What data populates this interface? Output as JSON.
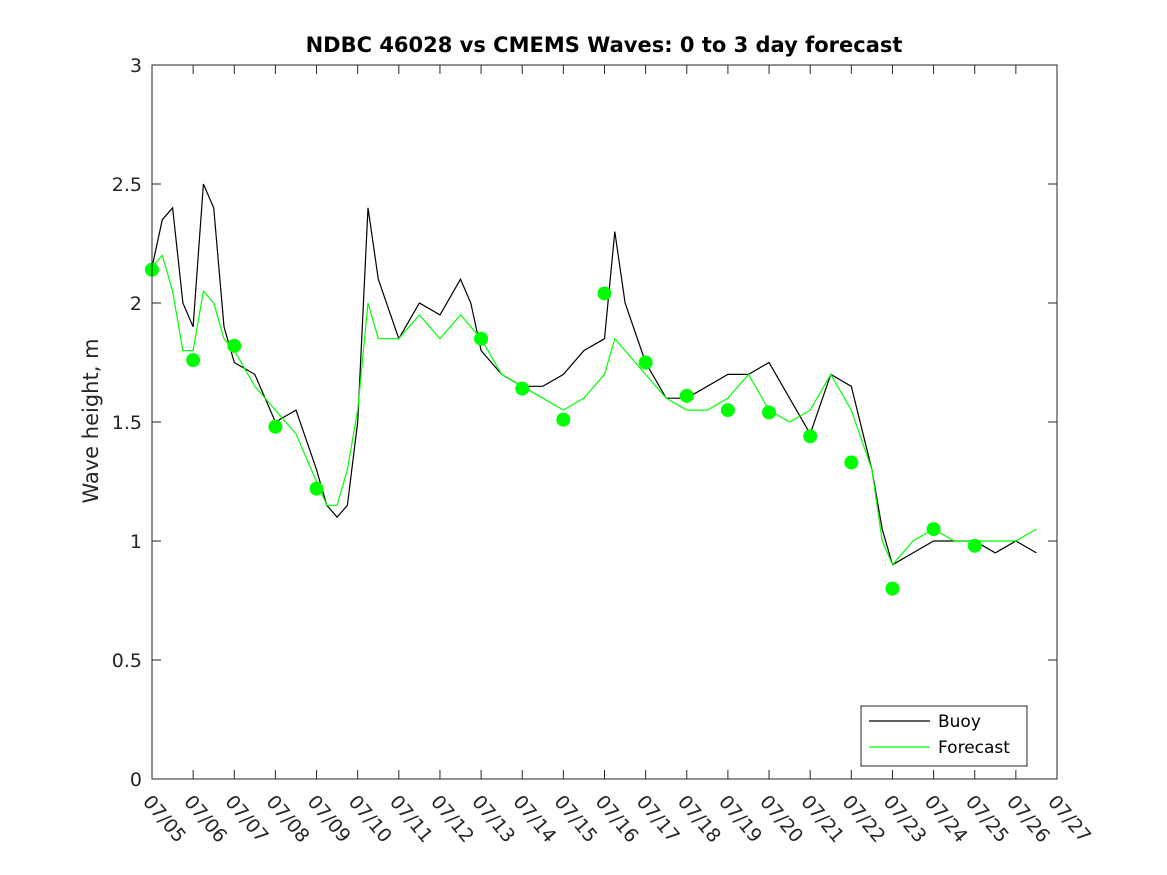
{
  "chart_data": {
    "type": "line",
    "title": "NDBC 46028 vs CMEMS Waves: 0 to 3 day forecast",
    "xlabel": "",
    "ylabel": "Wave height, m",
    "ylim": [
      0,
      3
    ],
    "xlim": [
      "07/05",
      "07/27"
    ],
    "grid": false,
    "legend_position": "bottom-right",
    "x_tick_labels": [
      "07/05",
      "07/06",
      "07/07",
      "07/08",
      "07/09",
      "07/10",
      "07/11",
      "07/12",
      "07/13",
      "07/14",
      "07/15",
      "07/16",
      "07/17",
      "07/18",
      "07/19",
      "07/20",
      "07/21",
      "07/22",
      "07/23",
      "07/24",
      "07/25",
      "07/26",
      "07/27"
    ],
    "y_tick_labels": [
      "0",
      "0.5",
      "1",
      "1.5",
      "2",
      "2.5",
      "3"
    ],
    "y_ticks": [
      0,
      0.5,
      1,
      1.5,
      2,
      2.5,
      3
    ],
    "colors": {
      "buoy": "#000000",
      "forecast": "#00ff00",
      "analysis_marker": "#00ff00"
    },
    "series": [
      {
        "name": "Buoy",
        "x": [
          "07/05",
          "07/05 06h",
          "07/05 12h",
          "07/05 18h",
          "07/06",
          "07/06 06h",
          "07/06 12h",
          "07/06 18h",
          "07/07",
          "07/07 12h",
          "07/08",
          "07/08 12h",
          "07/09",
          "07/09 06h",
          "07/09 12h",
          "07/09 18h",
          "07/10",
          "07/10 06h",
          "07/10 12h",
          "07/11",
          "07/11 12h",
          "07/12",
          "07/12 12h",
          "07/12 18h",
          "07/13",
          "07/13 12h",
          "07/14",
          "07/14 12h",
          "07/15",
          "07/15 12h",
          "07/16",
          "07/16 06h",
          "07/16 12h",
          "07/17",
          "07/17 12h",
          "07/18",
          "07/18 12h",
          "07/19",
          "07/19 12h",
          "07/20",
          "07/20 12h",
          "07/21",
          "07/21 12h",
          "07/22",
          "07/22 12h",
          "07/22 18h",
          "07/23",
          "07/23 12h",
          "07/24",
          "07/24 12h",
          "07/25",
          "07/25 12h",
          "07/26",
          "07/26 12h"
        ],
        "values": [
          2.15,
          2.35,
          2.4,
          2.0,
          1.9,
          2.5,
          2.4,
          1.9,
          1.75,
          1.7,
          1.5,
          1.55,
          1.3,
          1.15,
          1.1,
          1.15,
          1.5,
          2.4,
          2.1,
          1.85,
          2.0,
          1.95,
          2.1,
          2.0,
          1.8,
          1.7,
          1.65,
          1.65,
          1.7,
          1.8,
          1.85,
          2.3,
          2.0,
          1.75,
          1.6,
          1.6,
          1.65,
          1.7,
          1.7,
          1.75,
          1.6,
          1.45,
          1.7,
          1.65,
          1.3,
          1.05,
          0.9,
          0.95,
          1.0,
          1.0,
          1.0,
          0.95,
          1.0,
          0.95
        ]
      },
      {
        "name": "Forecast",
        "x": [
          "07/05",
          "07/05 06h",
          "07/05 12h",
          "07/05 18h",
          "07/06",
          "07/06 06h",
          "07/06 12h",
          "07/06 18h",
          "07/07",
          "07/07 12h",
          "07/08",
          "07/08 12h",
          "07/09",
          "07/09 06h",
          "07/09 12h",
          "07/09 18h",
          "07/10",
          "07/10 06h",
          "07/10 12h",
          "07/11",
          "07/11 12h",
          "07/12",
          "07/12 12h",
          "07/12 18h",
          "07/13",
          "07/13 12h",
          "07/14",
          "07/14 12h",
          "07/15",
          "07/15 12h",
          "07/16",
          "07/16 06h",
          "07/16 12h",
          "07/17",
          "07/17 12h",
          "07/18",
          "07/18 12h",
          "07/19",
          "07/19 12h",
          "07/20",
          "07/20 12h",
          "07/21",
          "07/21 12h",
          "07/22",
          "07/22 12h",
          "07/22 18h",
          "07/23",
          "07/23 12h",
          "07/24",
          "07/24 12h",
          "07/25",
          "07/25 12h",
          "07/26",
          "07/26 12h"
        ],
        "values": [
          2.15,
          2.2,
          2.05,
          1.8,
          1.8,
          2.05,
          2.0,
          1.85,
          1.8,
          1.65,
          1.55,
          1.45,
          1.25,
          1.15,
          1.15,
          1.3,
          1.55,
          2.0,
          1.85,
          1.85,
          1.95,
          1.85,
          1.95,
          1.9,
          1.85,
          1.7,
          1.65,
          1.6,
          1.55,
          1.6,
          1.7,
          1.85,
          1.8,
          1.7,
          1.6,
          1.55,
          1.55,
          1.6,
          1.7,
          1.55,
          1.5,
          1.55,
          1.7,
          1.55,
          1.3,
          1.0,
          0.9,
          1.0,
          1.05,
          1.0,
          1.0,
          1.0,
          1.0,
          1.05
        ]
      }
    ],
    "analysis_points": {
      "x": [
        "07/05",
        "07/06",
        "07/07",
        "07/08",
        "07/09",
        "07/13",
        "07/14",
        "07/15",
        "07/16",
        "07/17",
        "07/18",
        "07/19",
        "07/20",
        "07/21",
        "07/22",
        "07/23",
        "07/24",
        "07/25"
      ],
      "values": [
        2.14,
        1.76,
        1.82,
        1.48,
        1.22,
        1.85,
        1.64,
        1.51,
        2.04,
        1.75,
        1.61,
        1.55,
        1.54,
        1.44,
        1.33,
        0.8,
        1.05,
        0.98
      ]
    },
    "legend": [
      "Buoy",
      "Forecast"
    ]
  }
}
